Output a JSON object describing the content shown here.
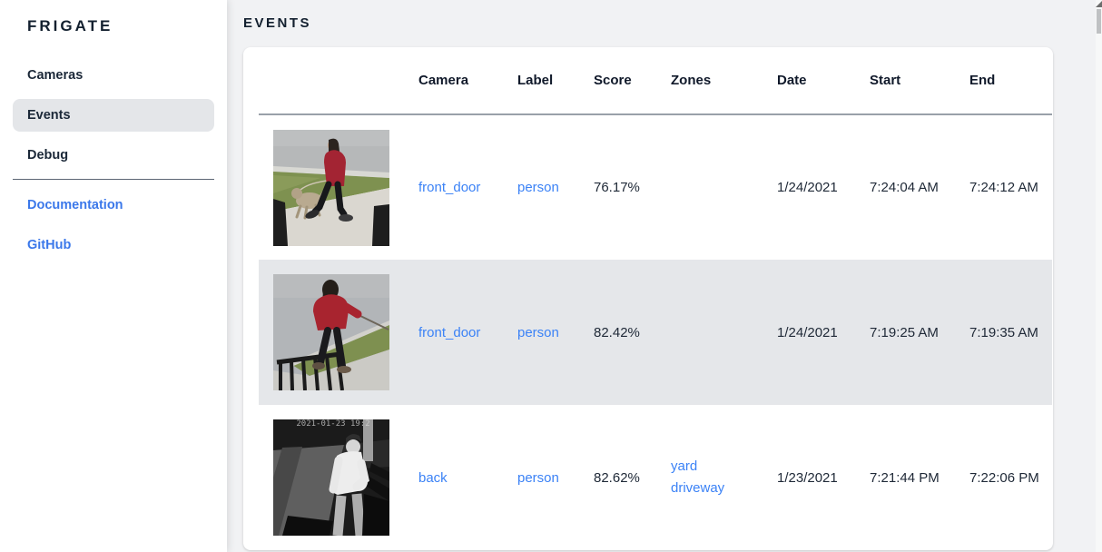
{
  "app": {
    "title": "FRIGATE"
  },
  "sidebar": {
    "items": [
      {
        "label": "Cameras",
        "selected": false
      },
      {
        "label": "Events",
        "selected": true
      },
      {
        "label": "Debug",
        "selected": false
      }
    ],
    "links": [
      {
        "label": "Documentation"
      },
      {
        "label": "GitHub"
      }
    ]
  },
  "main": {
    "heading": "EVENTS",
    "table": {
      "columns": [
        "Camera",
        "Label",
        "Score",
        "Zones",
        "Date",
        "Start",
        "End"
      ],
      "rows": [
        {
          "camera": "front_door",
          "label": "person",
          "score": "76.17%",
          "zones": [],
          "date": "1/24/2021",
          "start": "7:24:04 AM",
          "end": "7:24:12 AM",
          "thumbnail": "woman-red-coat-walking-dog",
          "highlighted": false
        },
        {
          "camera": "front_door",
          "label": "person",
          "score": "82.42%",
          "zones": [],
          "date": "1/24/2021",
          "start": "7:19:25 AM",
          "end": "7:19:35 AM",
          "thumbnail": "woman-red-hoodie-with-leash",
          "highlighted": true
        },
        {
          "camera": "back",
          "label": "person",
          "score": "82.62%",
          "zones": [
            "yard",
            "driveway"
          ],
          "date": "1/23/2021",
          "start": "7:21:44 PM",
          "end": "7:22:06 PM",
          "thumbnail": "night-ir-person-white-shirt",
          "highlighted": false
        }
      ]
    }
  },
  "thumbnail_overlay_text": {
    "night_timestamp": "2021-01-23 19:2"
  },
  "colors": {
    "accent_blue": "#3b82f6",
    "navy_text": "#13202f",
    "highlight_row": "#e5e7ea",
    "page_background": "#f1f2f4",
    "card_background": "#ffffff",
    "selected_nav_background": "#e4e6e9"
  }
}
